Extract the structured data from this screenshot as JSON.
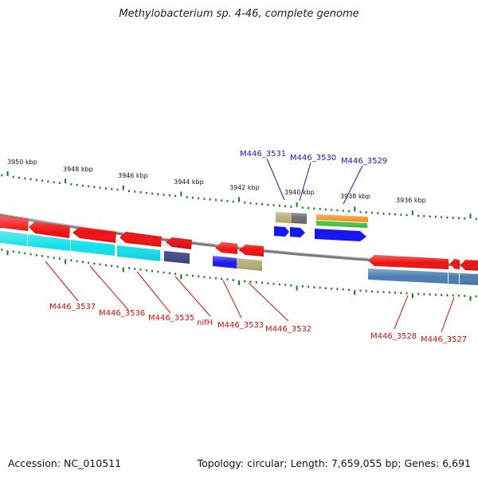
{
  "title": "Methylobacterium sp. 4-46, complete genome",
  "footer": {
    "accession": "Accession: NC_010511",
    "stats": "Topology: circular; Length: 7,659,055 bp; Genes: 6,691"
  },
  "colors": {
    "backbone": "#808080",
    "tick": "#1a7a1a",
    "top_label": "#1a1aa8",
    "bottom_label": "#cc1111",
    "red": "#ee1111",
    "cyan": "#11e0ea",
    "blue": "#1818ee",
    "khaki": "#b7ad78",
    "dark_gray": "#6e6e6e",
    "purple": "#4a4a8c",
    "steel": "#4a7eb4",
    "orange": "#ef8f1a",
    "green": "#46c846"
  },
  "ruler_labels": [
    "3950 kbp",
    "3948 kbp",
    "3946 kbp",
    "3944 kbp",
    "3942 kbp",
    "3940 kbp",
    "3938 kbp",
    "3936 kbp"
  ],
  "top_gene_labels": [
    "M446_3531",
    "M446_3530",
    "M446_3529"
  ],
  "bottom_gene_labels": [
    "M446_3537",
    "M446_3536",
    "M446_3535",
    "nifH",
    "M446_3533",
    "M446_3532",
    "M446_3528",
    "M446_3527"
  ]
}
